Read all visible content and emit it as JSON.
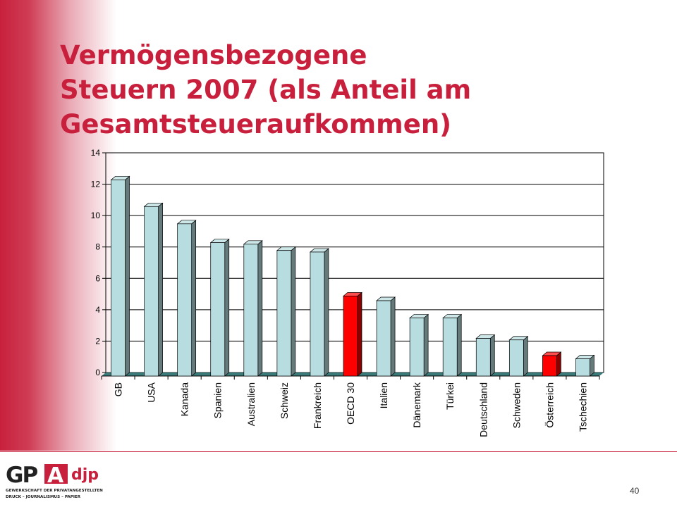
{
  "title_lines": [
    "Vermögensbezogene",
    "Steuern 2007 (als Anteil am",
    "Gesamtsteueraufkommen)"
  ],
  "chart_data": {
    "type": "bar",
    "title": "",
    "xlabel": "",
    "ylabel": "",
    "categories": [
      "GB",
      "USA",
      "Kanada",
      "Spanien",
      "Australien",
      "Schweiz",
      "Frankreich",
      "OECD 30",
      "Italien",
      "Dänemark",
      "Türkei",
      "Deutschland",
      "Schweden",
      "Österreich",
      "Tschechien"
    ],
    "values": [
      12.5,
      10.8,
      9.7,
      8.5,
      8.4,
      8.0,
      7.9,
      5.1,
      4.8,
      3.7,
      3.7,
      2.4,
      2.3,
      1.3,
      1.1
    ],
    "highlighted": [
      "OECD 30",
      "Österreich"
    ],
    "ylim": [
      0,
      14
    ],
    "yticks": [
      "0",
      "2",
      "4",
      "6",
      "8",
      "10",
      "12",
      "14"
    ],
    "grid": true,
    "legend": "none",
    "colors": {
      "bar": "#b8dde0",
      "highlight": "#ff0000",
      "floor": "#3a7a78"
    }
  },
  "logo": {
    "mark_left": "GP",
    "mark_right": "A",
    "mark_secondary": "djp",
    "line1": "GEWERKSCHAFT DER PRIVATANGESTELLTEN",
    "line2": "DRUCK – JOURNALISMUS – PAPIER",
    "colors": {
      "primary": "#c8203c",
      "dark": "#222222"
    }
  },
  "page_number": "40"
}
